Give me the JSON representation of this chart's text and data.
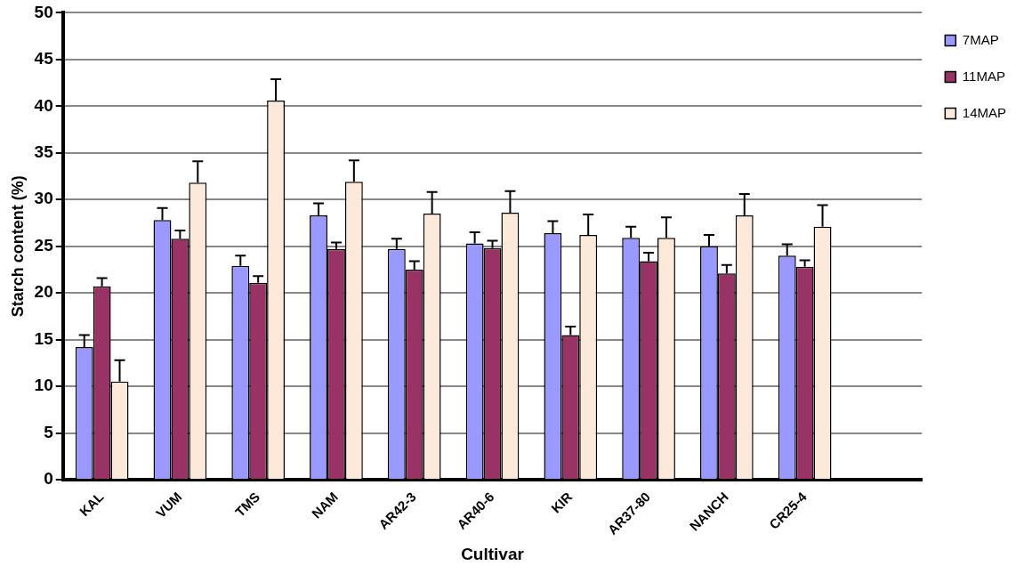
{
  "chart_data": {
    "type": "bar",
    "xlabel": "Cultivar",
    "ylabel": "Starch content (%)",
    "categories": [
      "KAL",
      "VUM",
      "TMS",
      "NAM",
      "AR42-3",
      "AR40-6",
      "KIR",
      "AR37-80",
      "NANCH",
      "CR25-4",
      null
    ],
    "series": [
      {
        "name": "7MAP",
        "color": "#9999ff",
        "values": [
          14.2,
          27.8,
          22.9,
          28.3,
          24.7,
          25.3,
          26.4,
          25.9,
          25.0,
          24.0,
          null
        ],
        "errors": [
          [
            14.2,
            15.5
          ],
          [
            27.8,
            29.1
          ],
          [
            22.9,
            24.0
          ],
          [
            28.3,
            29.6
          ],
          [
            24.7,
            25.8
          ],
          [
            25.3,
            26.5
          ],
          [
            26.4,
            27.7
          ],
          [
            25.9,
            27.1
          ],
          [
            25.0,
            26.2
          ],
          [
            24.0,
            25.2
          ],
          null
        ]
      },
      {
        "name": "11MAP",
        "color": "#993366",
        "values": [
          20.7,
          25.8,
          21.1,
          24.7,
          22.5,
          24.8,
          15.5,
          23.4,
          22.1,
          22.8,
          null
        ],
        "errors": [
          [
            20.7,
            21.6
          ],
          [
            25.8,
            26.7
          ],
          [
            21.1,
            21.8
          ],
          [
            24.7,
            25.4
          ],
          [
            22.5,
            23.4
          ],
          [
            24.8,
            25.6
          ],
          [
            15.5,
            16.4
          ],
          [
            23.4,
            24.3
          ],
          [
            22.1,
            23.0
          ],
          [
            22.8,
            23.5
          ],
          null
        ]
      },
      {
        "name": "14MAP",
        "color": "#fde9d9",
        "values": [
          10.5,
          31.8,
          40.6,
          31.9,
          28.5,
          28.6,
          26.2,
          25.9,
          28.3,
          27.1,
          null
        ],
        "errors": [
          [
            10.5,
            12.8
          ],
          [
            31.8,
            34.1
          ],
          [
            40.6,
            42.9
          ],
          [
            31.9,
            34.2
          ],
          [
            28.5,
            30.8
          ],
          [
            28.6,
            30.9
          ],
          [
            26.2,
            28.4
          ],
          [
            25.9,
            28.1
          ],
          [
            28.3,
            30.6
          ],
          [
            27.1,
            29.4
          ],
          null
        ]
      }
    ],
    "ylim": [
      0,
      50
    ],
    "yticks": [
      0,
      5,
      10,
      15,
      20,
      25,
      30,
      35,
      40,
      45,
      50
    ],
    "grid": "y",
    "legend": "right"
  }
}
